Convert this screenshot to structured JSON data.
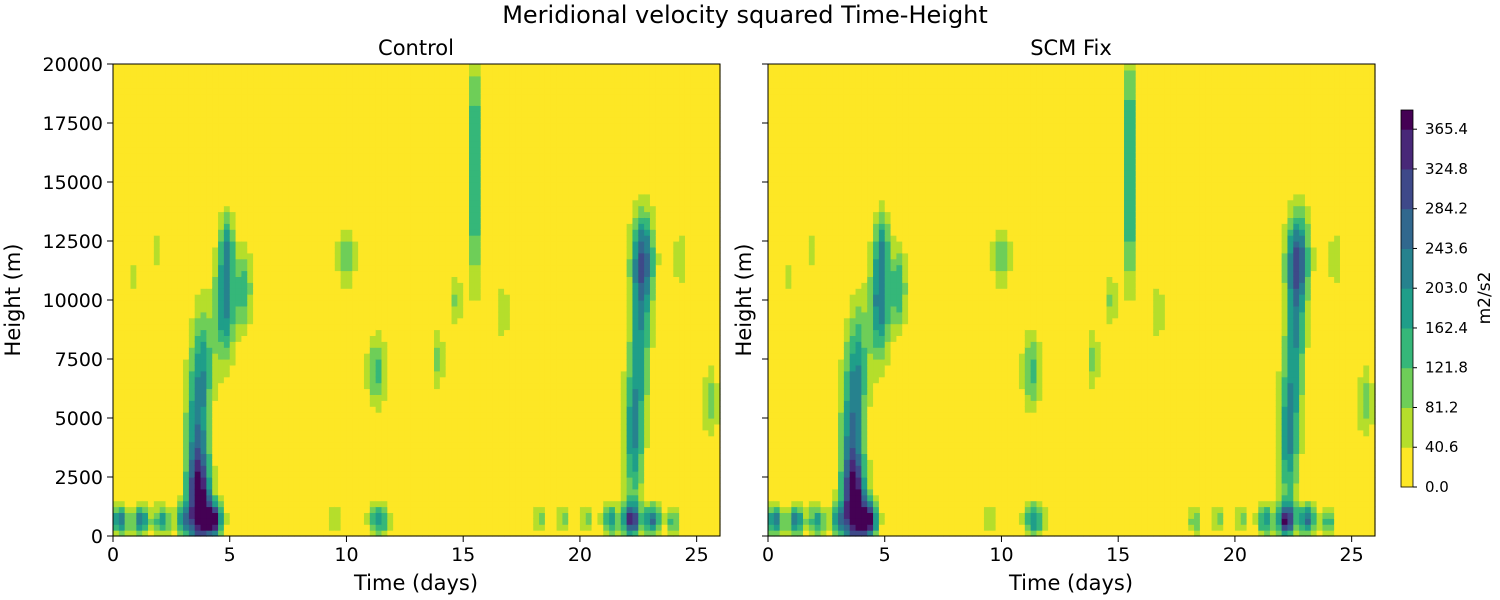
{
  "chart_data": {
    "type": "heatmap",
    "suptitle": "Meridional velocity squared Time-Height",
    "xlim": [
      0,
      26
    ],
    "ylim": [
      0,
      20000
    ],
    "xticks": [
      0,
      5,
      10,
      15,
      20,
      25
    ],
    "yticks": [
      0,
      2500,
      5000,
      7500,
      10000,
      12500,
      15000,
      17500,
      20000
    ],
    "xlabel": "Time (days)",
    "ylabel": "Height (m)",
    "panels": [
      {
        "title": "Control",
        "scale": 1.0
      },
      {
        "title": "SCM Fix",
        "scale": 1.03
      }
    ],
    "colorbar": {
      "label": "m2/s2",
      "min": 0.0,
      "max": 385,
      "ticks": [
        "0.0",
        "40.6",
        "81.2",
        "121.8",
        "162.4",
        "203.0",
        "243.6",
        "284.2",
        "324.8",
        "365.4"
      ],
      "tick_values": [
        0.0,
        40.6,
        81.2,
        121.8,
        162.4,
        203.0,
        243.6,
        284.2,
        324.8,
        365.4
      ],
      "colormap": [
        "#fde725",
        "#b5de2b",
        "#6ece58",
        "#35b779",
        "#1f9e89",
        "#26828e",
        "#31688e",
        "#3e4989",
        "#482878",
        "#440154"
      ]
    },
    "features": [
      {
        "t": 0.3,
        "z": 700,
        "st": 0.25,
        "sz": 450,
        "a": 230
      },
      {
        "t": 1.2,
        "z": 700,
        "st": 0.25,
        "sz": 450,
        "a": 230
      },
      {
        "t": 2.1,
        "z": 700,
        "st": 0.25,
        "sz": 450,
        "a": 180
      },
      {
        "t": 3.0,
        "z": 700,
        "st": 0.25,
        "sz": 450,
        "a": 170
      },
      {
        "t": 3.7,
        "z": 1300,
        "st": 0.35,
        "sz": 1400,
        "a": 320
      },
      {
        "t": 4.3,
        "z": 700,
        "st": 0.28,
        "sz": 500,
        "a": 365
      },
      {
        "t": 3.6,
        "z": 4200,
        "st": 0.35,
        "sz": 2600,
        "a": 210
      },
      {
        "t": 3.9,
        "z": 7500,
        "st": 0.3,
        "sz": 1800,
        "a": 120
      },
      {
        "t": 4.8,
        "z": 10000,
        "st": 0.3,
        "sz": 1800,
        "a": 230
      },
      {
        "t": 5.6,
        "z": 10500,
        "st": 0.25,
        "sz": 1200,
        "a": 150
      },
      {
        "t": 4.9,
        "z": 12500,
        "st": 0.2,
        "sz": 900,
        "a": 120
      },
      {
        "t": 1.8,
        "z": 12200,
        "st": 0.15,
        "sz": 700,
        "a": 70
      },
      {
        "t": 0.9,
        "z": 11000,
        "st": 0.2,
        "sz": 800,
        "a": 50
      },
      {
        "t": 9.5,
        "z": 700,
        "st": 0.2,
        "sz": 400,
        "a": 90
      },
      {
        "t": 11.4,
        "z": 700,
        "st": 0.3,
        "sz": 500,
        "a": 200
      },
      {
        "t": 11.3,
        "z": 7000,
        "st": 0.3,
        "sz": 1100,
        "a": 140
      },
      {
        "t": 10.0,
        "z": 11800,
        "st": 0.3,
        "sz": 900,
        "a": 110
      },
      {
        "t": 13.9,
        "z": 7500,
        "st": 0.2,
        "sz": 900,
        "a": 100
      },
      {
        "t": 14.7,
        "z": 10000,
        "st": 0.2,
        "sz": 900,
        "a": 90
      },
      {
        "t": 15.5,
        "z": 14000,
        "st": 0.2,
        "sz": 2500,
        "a": 170
      },
      {
        "t": 15.5,
        "z": 18500,
        "st": 0.2,
        "sz": 1500,
        "a": 110
      },
      {
        "t": 16.7,
        "z": 9500,
        "st": 0.2,
        "sz": 900,
        "a": 80
      },
      {
        "t": 18.3,
        "z": 700,
        "st": 0.2,
        "sz": 400,
        "a": 120
      },
      {
        "t": 19.3,
        "z": 700,
        "st": 0.2,
        "sz": 400,
        "a": 110
      },
      {
        "t": 20.3,
        "z": 700,
        "st": 0.2,
        "sz": 400,
        "a": 110
      },
      {
        "t": 21.3,
        "z": 700,
        "st": 0.25,
        "sz": 450,
        "a": 200
      },
      {
        "t": 22.2,
        "z": 700,
        "st": 0.25,
        "sz": 450,
        "a": 330
      },
      {
        "t": 23.1,
        "z": 700,
        "st": 0.25,
        "sz": 450,
        "a": 250
      },
      {
        "t": 24.0,
        "z": 700,
        "st": 0.2,
        "sz": 400,
        "a": 150
      },
      {
        "t": 22.3,
        "z": 4200,
        "st": 0.3,
        "sz": 2200,
        "a": 200
      },
      {
        "t": 22.6,
        "z": 8500,
        "st": 0.3,
        "sz": 2200,
        "a": 170
      },
      {
        "t": 22.7,
        "z": 11800,
        "st": 0.35,
        "sz": 1400,
        "a": 250
      },
      {
        "t": 24.3,
        "z": 11800,
        "st": 0.2,
        "sz": 900,
        "a": 80
      },
      {
        "t": 25.6,
        "z": 5700,
        "st": 0.25,
        "sz": 1100,
        "a": 100
      }
    ]
  }
}
